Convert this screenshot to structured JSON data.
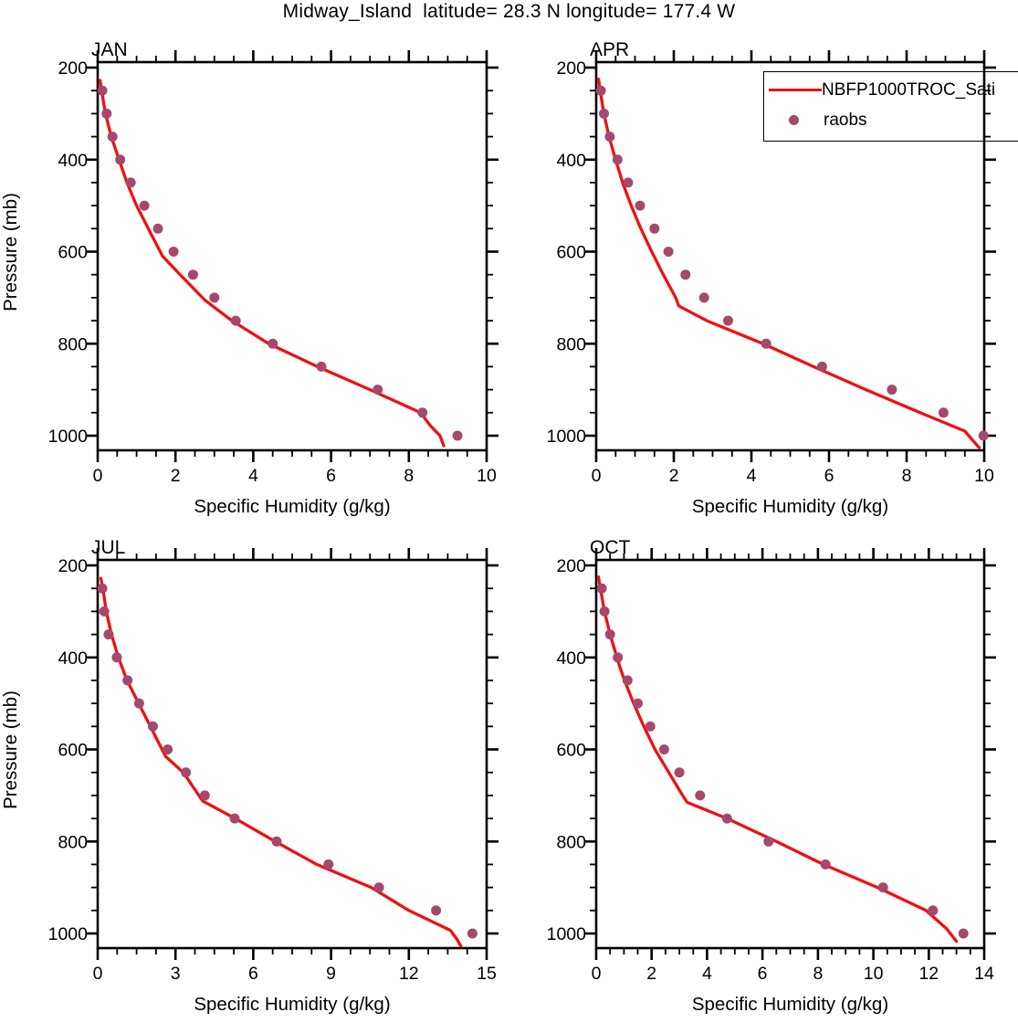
{
  "title": "Midway_Island  latitude= 28.3 N longitude= 177.4 W",
  "colors": {
    "model_line": "#f01010",
    "raobs_dot": "#a6486d",
    "axis": "#000000"
  },
  "legend": {
    "entries": [
      {
        "label": "NBFP1000TROC_Sati",
        "marker": "line"
      },
      {
        "label": "raobs",
        "marker": "dot"
      }
    ]
  },
  "axes": {
    "xlabel": "Specific Humidity (g/kg)",
    "ylabel": "Pressure (mb)",
    "y_major_ticks": [
      200,
      400,
      600,
      800,
      1000
    ],
    "y_minor_step": 50,
    "y_range_frame": [
      188,
      1032
    ]
  },
  "chart_data": [
    {
      "type": "line",
      "title": "JAN",
      "xlabel": "Specific Humidity (g/kg)",
      "ylabel": "Pressure (mb)",
      "show_ylabel": true,
      "xlim": [
        0,
        10
      ],
      "x_major_ticks": [
        0,
        2,
        4,
        6,
        8,
        10
      ],
      "x_minor_step": 0.5,
      "ylim": [
        200,
        1000
      ],
      "series": [
        {
          "name": "NBFP1000TROC_Sati",
          "kind": "line",
          "points_pressure_q": [
            [
              228,
              0.06
            ],
            [
              250,
              0.1
            ],
            [
              300,
              0.2
            ],
            [
              350,
              0.35
            ],
            [
              400,
              0.55
            ],
            [
              450,
              0.75
            ],
            [
              500,
              1.0
            ],
            [
              550,
              1.3
            ],
            [
              610,
              1.67
            ],
            [
              650,
              2.12
            ],
            [
              705,
              2.75
            ],
            [
              750,
              3.45
            ],
            [
              800,
              4.4
            ],
            [
              850,
              5.65
            ],
            [
              900,
              7.0
            ],
            [
              950,
              8.3
            ],
            [
              978,
              8.55
            ],
            [
              1000,
              8.8
            ],
            [
              1022,
              8.9
            ]
          ]
        },
        {
          "name": "raobs",
          "kind": "scatter",
          "pressures": [
            250,
            300,
            350,
            400,
            450,
            500,
            550,
            600,
            650,
            700,
            750,
            800,
            850,
            900,
            950,
            1000
          ],
          "values": [
            0.12,
            0.23,
            0.38,
            0.58,
            0.85,
            1.2,
            1.55,
            1.95,
            2.45,
            3.0,
            3.55,
            4.5,
            5.75,
            7.2,
            8.35,
            9.25
          ]
        }
      ]
    },
    {
      "type": "line",
      "title": "APR",
      "xlabel": "Specific Humidity (g/kg)",
      "ylabel": "Pressure (mb)",
      "show_ylabel": false,
      "xlim": [
        0,
        10
      ],
      "x_major_ticks": [
        0,
        2,
        4,
        6,
        8,
        10
      ],
      "x_minor_step": 0.5,
      "ylim": [
        200,
        1000
      ],
      "series": [
        {
          "name": "NBFP1000TROC_Sati",
          "kind": "line",
          "points_pressure_q": [
            [
              225,
              0.06
            ],
            [
              250,
              0.1
            ],
            [
              300,
              0.2
            ],
            [
              350,
              0.33
            ],
            [
              400,
              0.5
            ],
            [
              450,
              0.68
            ],
            [
              500,
              0.9
            ],
            [
              550,
              1.15
            ],
            [
              600,
              1.43
            ],
            [
              650,
              1.73
            ],
            [
              700,
              2.05
            ],
            [
              718,
              2.13
            ],
            [
              750,
              2.85
            ],
            [
              800,
              4.3
            ],
            [
              850,
              5.6
            ],
            [
              900,
              6.95
            ],
            [
              950,
              8.35
            ],
            [
              990,
              9.5
            ],
            [
              1010,
              9.7
            ],
            [
              1026,
              9.87
            ]
          ]
        },
        {
          "name": "raobs",
          "kind": "scatter",
          "pressures": [
            250,
            300,
            350,
            400,
            450,
            500,
            550,
            600,
            650,
            700,
            750,
            800,
            850,
            900,
            950,
            1000
          ],
          "values": [
            0.12,
            0.2,
            0.35,
            0.55,
            0.82,
            1.13,
            1.5,
            1.86,
            2.3,
            2.78,
            3.4,
            4.38,
            5.82,
            7.62,
            8.95,
            9.98
          ]
        }
      ]
    },
    {
      "type": "line",
      "title": "JUL",
      "xlabel": "Specific Humidity (g/kg)",
      "ylabel": "Pressure (mb)",
      "show_ylabel": true,
      "xlim": [
        0,
        15
      ],
      "x_major_ticks": [
        0,
        3,
        6,
        9,
        12,
        15
      ],
      "x_minor_step": 0.75,
      "ylim": [
        200,
        1000
      ],
      "series": [
        {
          "name": "NBFP1000TROC_Sati",
          "kind": "line",
          "points_pressure_q": [
            [
              228,
              0.12
            ],
            [
              250,
              0.2
            ],
            [
              300,
              0.33
            ],
            [
              350,
              0.53
            ],
            [
              400,
              0.8
            ],
            [
              450,
              1.13
            ],
            [
              500,
              1.58
            ],
            [
              550,
              2.03
            ],
            [
              615,
              2.62
            ],
            [
              650,
              3.3
            ],
            [
              712,
              4.05
            ],
            [
              750,
              5.3
            ],
            [
              800,
              6.85
            ],
            [
              850,
              8.45
            ],
            [
              900,
              10.55
            ],
            [
              950,
              12.0
            ],
            [
              993,
              13.6
            ],
            [
              1012,
              13.85
            ],
            [
              1027,
              14.0
            ]
          ]
        },
        {
          "name": "raobs",
          "kind": "scatter",
          "pressures": [
            250,
            300,
            350,
            400,
            450,
            500,
            550,
            600,
            650,
            700,
            750,
            800,
            850,
            900,
            950,
            1000
          ],
          "values": [
            0.18,
            0.25,
            0.42,
            0.74,
            1.15,
            1.6,
            2.13,
            2.7,
            3.4,
            4.13,
            5.28,
            6.9,
            8.9,
            10.85,
            13.05,
            14.45
          ]
        }
      ]
    },
    {
      "type": "line",
      "title": "OCT",
      "xlabel": "Specific Humidity (g/kg)",
      "ylabel": "Pressure (mb)",
      "show_ylabel": false,
      "xlim": [
        0,
        14
      ],
      "x_major_ticks": [
        0,
        2,
        4,
        6,
        8,
        10,
        12,
        14
      ],
      "x_minor_step": 0.5,
      "ylim": [
        200,
        1000
      ],
      "series": [
        {
          "name": "NBFP1000TROC_Sati",
          "kind": "line",
          "points_pressure_q": [
            [
              225,
              0.08
            ],
            [
              250,
              0.15
            ],
            [
              300,
              0.3
            ],
            [
              350,
              0.5
            ],
            [
              420,
              0.85
            ],
            [
              450,
              1.02
            ],
            [
              500,
              1.35
            ],
            [
              550,
              1.72
            ],
            [
              600,
              2.12
            ],
            [
              650,
              2.62
            ],
            [
              700,
              3.12
            ],
            [
              715,
              3.28
            ],
            [
              750,
              4.72
            ],
            [
              800,
              6.5
            ],
            [
              850,
              8.2
            ],
            [
              900,
              10.15
            ],
            [
              950,
              11.9
            ],
            [
              990,
              12.65
            ],
            [
              1017,
              13.0
            ]
          ]
        },
        {
          "name": "raobs",
          "kind": "scatter",
          "pressures": [
            250,
            300,
            350,
            400,
            450,
            500,
            550,
            600,
            650,
            700,
            750,
            800,
            850,
            900,
            950,
            1000
          ],
          "values": [
            0.2,
            0.3,
            0.5,
            0.78,
            1.13,
            1.5,
            1.95,
            2.45,
            3.0,
            3.75,
            4.72,
            6.22,
            8.27,
            10.35,
            12.15,
            13.25
          ]
        }
      ]
    }
  ]
}
